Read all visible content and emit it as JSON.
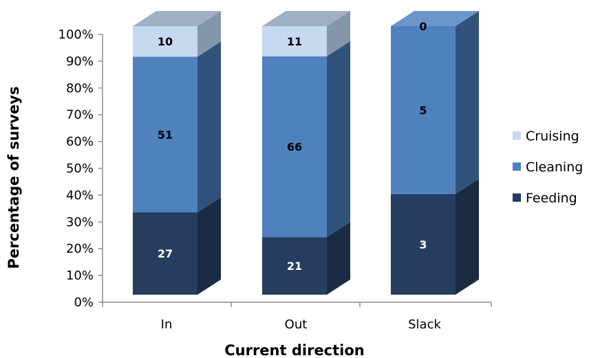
{
  "chart_data": {
    "type": "bar",
    "stacked": "percent",
    "three_d": true,
    "categories": [
      "In",
      "Out",
      "Slack"
    ],
    "series": [
      {
        "name": "Feeding",
        "values": [
          27,
          21,
          3
        ],
        "color": "#253d5e",
        "side_color": "#1a2b43",
        "top_color": "#2f4a70",
        "label_color": "#ffffff"
      },
      {
        "name": "Cleaning",
        "values": [
          51,
          66,
          5
        ],
        "color": "#4f81bd",
        "side_color": "#31527a",
        "top_color": "#6a96cc",
        "label_color": "#000000"
      },
      {
        "name": "Cruising",
        "values": [
          10,
          11,
          0
        ],
        "color": "#c6d9f1",
        "side_color": "#8496aa",
        "top_color": "#9fb0c4",
        "label_color": "#000000"
      }
    ],
    "xlabel": "Current direction",
    "ylabel": "Percentage of surveys",
    "ylim": [
      0,
      100
    ],
    "y_ticks": [
      "0%",
      "10%",
      "20%",
      "30%",
      "40%",
      "50%",
      "60%",
      "70%",
      "80%",
      "90%",
      "100%"
    ],
    "legend_position": "right",
    "grid": false
  }
}
